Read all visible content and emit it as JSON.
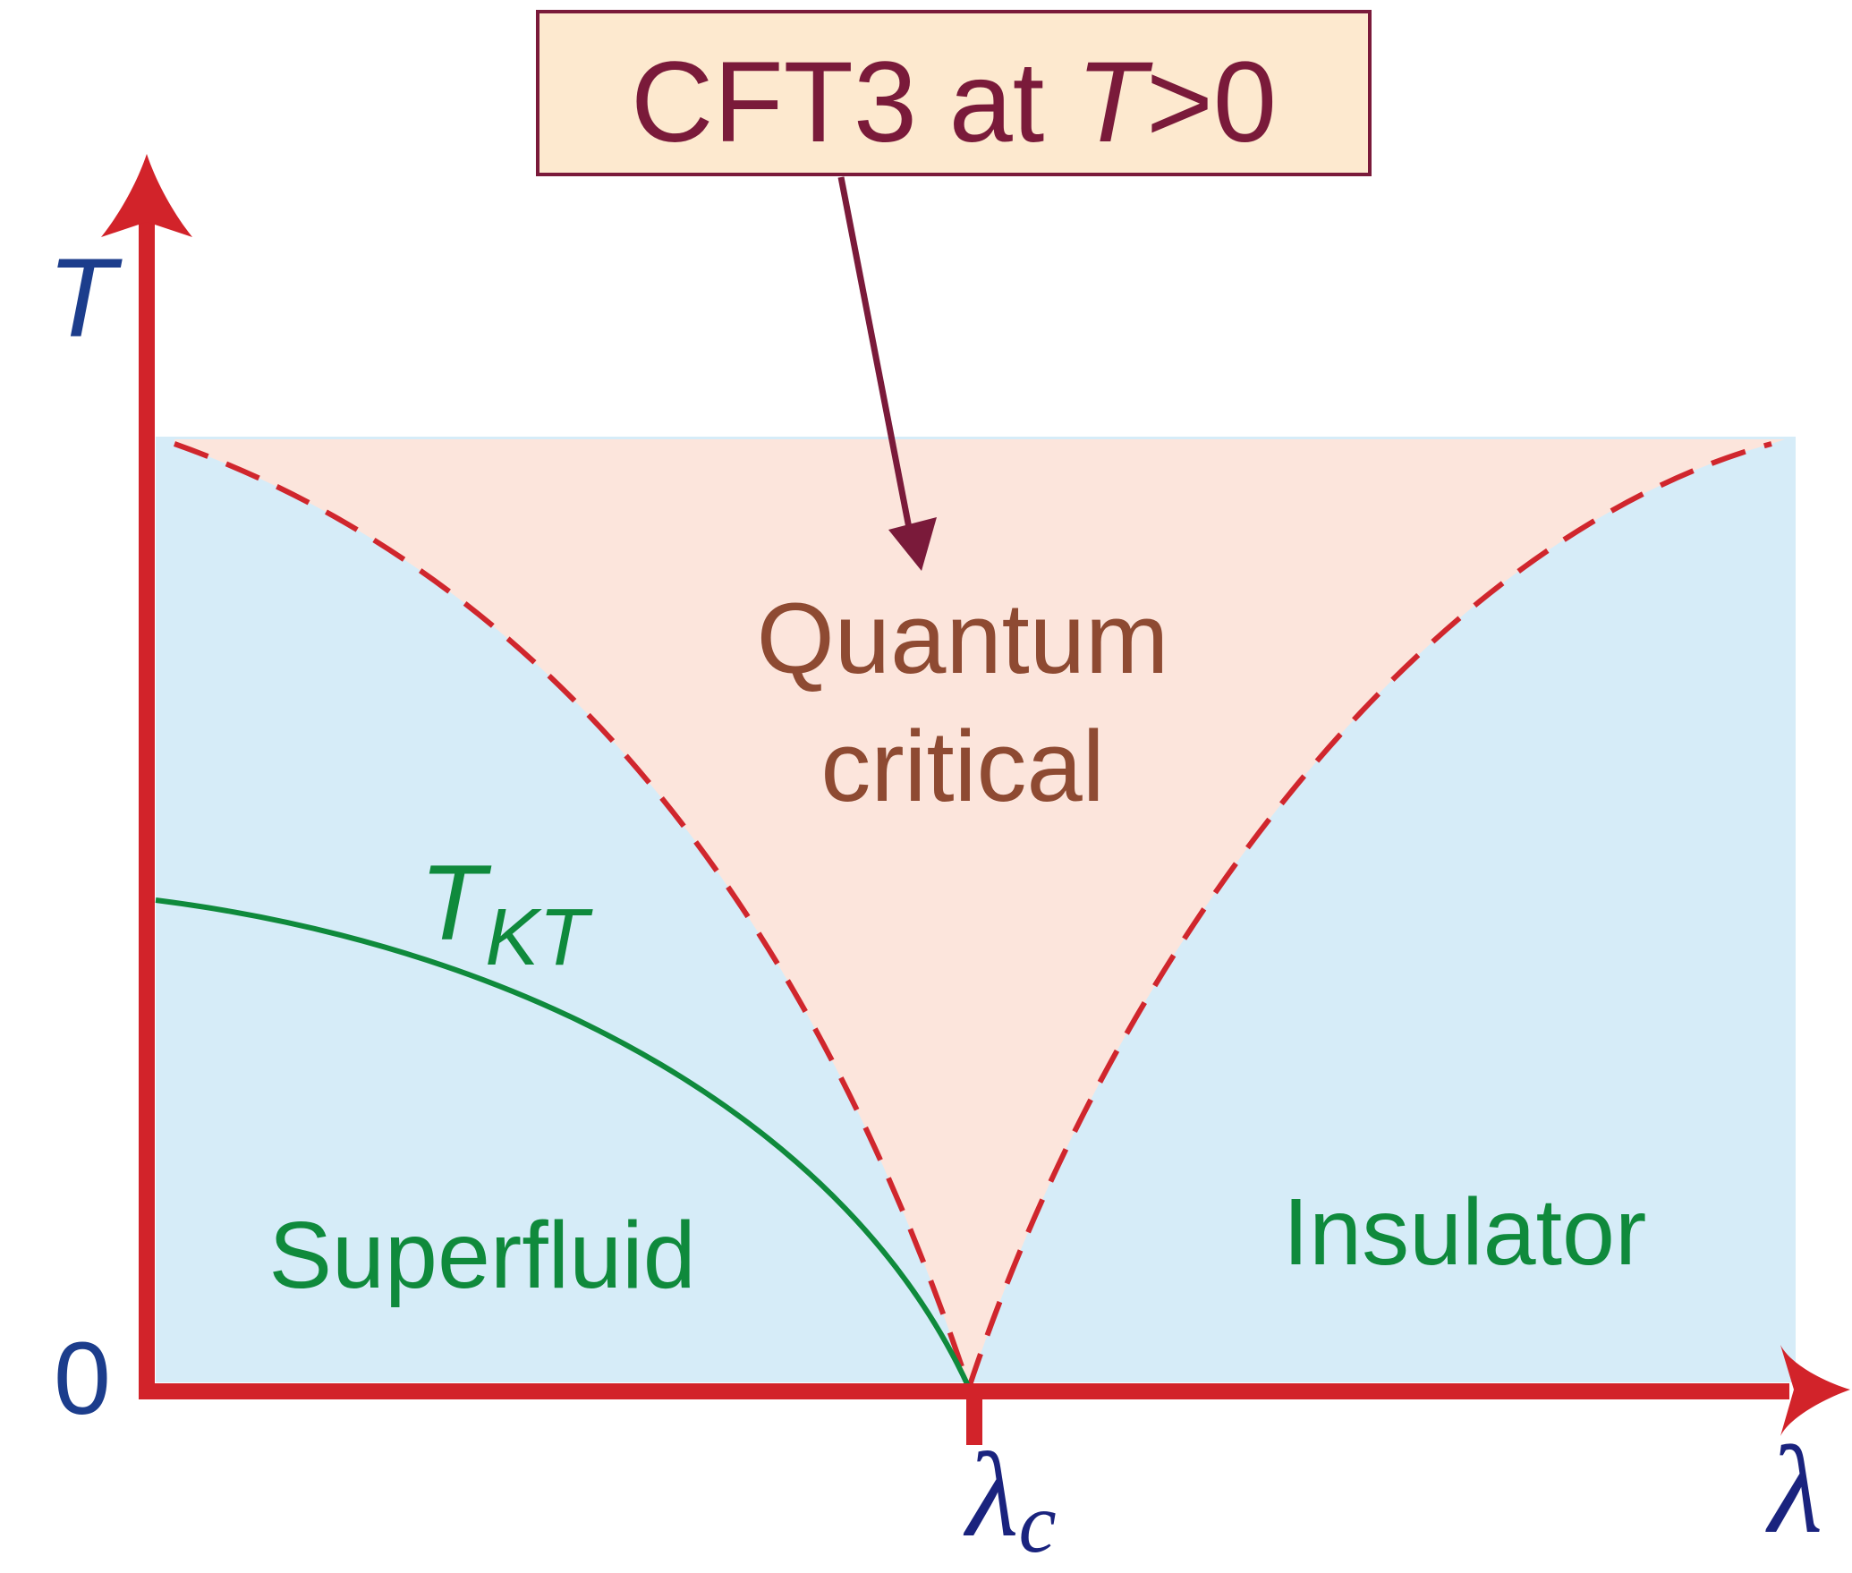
{
  "annotation": {
    "parts": [
      "CFT3 at ",
      "T",
      ">0"
    ]
  },
  "axes": {
    "y_label": "T",
    "origin": "0",
    "x_label": "λ",
    "critical": {
      "symbol": "λ",
      "subscript": "c"
    }
  },
  "regions": {
    "critical": [
      "Quantum",
      "critical"
    ],
    "left": "Superfluid",
    "right": "Insulator"
  },
  "curve": {
    "symbol": "T",
    "subscript": "KT"
  }
}
